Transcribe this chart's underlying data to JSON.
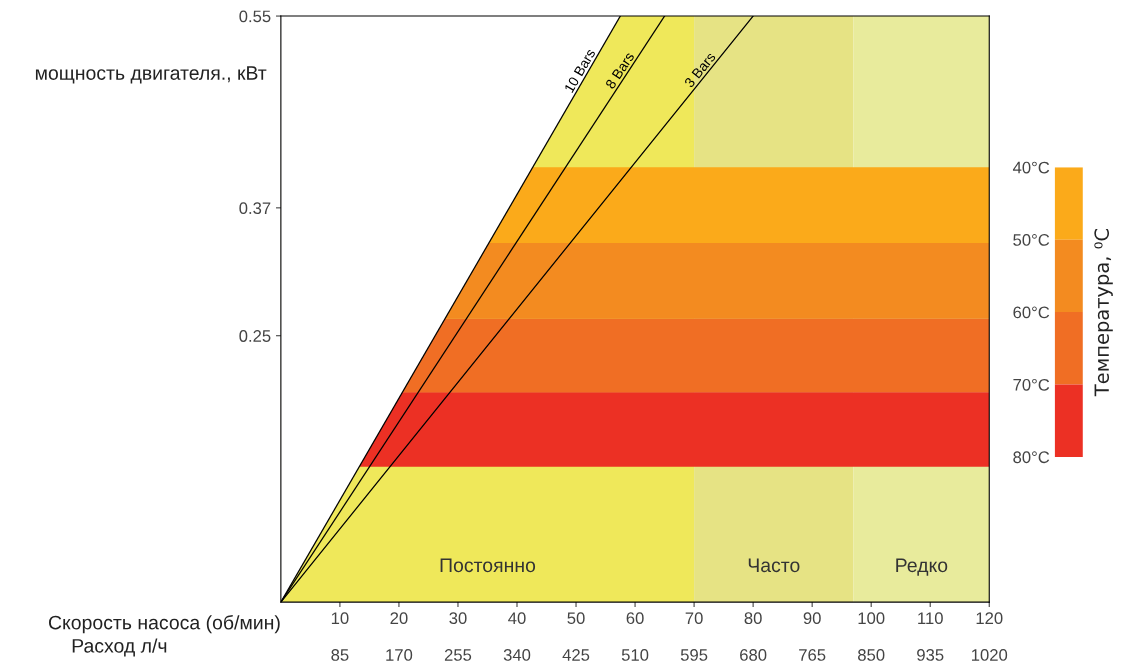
{
  "chart_data": {
    "type": "line",
    "xlabel": "Скорость насоса (об/мин)",
    "x2label": "Расход л/ч",
    "x2lim": [
      0,
      1020
    ],
    "x2ticks": [
      85,
      170,
      255,
      340,
      425,
      510,
      595,
      680,
      765,
      850,
      935,
      1020
    ],
    "ylabel": "мощность двигателя., кВт",
    "series": [
      {
        "name": "10 Bars",
        "color": "#000000",
        "x": [
          0,
          57.5
        ],
        "values": [
          0,
          0.55
        ]
      },
      {
        "name": "8 Bars",
        "color": "#000000",
        "x": [
          0,
          65
        ],
        "values": [
          0,
          0.55
        ]
      },
      {
        "name": "3 Bars",
        "color": "#000000",
        "x": [
          0,
          80
        ],
        "values": [
          0,
          0.55
        ]
      }
    ],
    "xlim": [
      0,
      120
    ],
    "ylim": [
      0,
      0.55
    ],
    "xticks": [
      10,
      20,
      30,
      40,
      50,
      60,
      70,
      80,
      90,
      100,
      110,
      120
    ],
    "yticks": [
      0.25,
      0.37,
      0.55
    ],
    "bands": [
      {
        "axis": "x",
        "from": 0,
        "to": 70,
        "label": "Постоянно",
        "color": "#efe85a"
      },
      {
        "axis": "x",
        "from": 70,
        "to": 97,
        "label": "Часто",
        "color": "#e6e384"
      },
      {
        "axis": "x",
        "from": 97,
        "to": 120,
        "label": "Редко",
        "color": "#e8eb9c"
      },
      {
        "axis": "y",
        "from": 0.337,
        "to": 0.408,
        "color": "#fbaa1a"
      },
      {
        "axis": "y",
        "from": 0.266,
        "to": 0.337,
        "color": "#f38b20"
      },
      {
        "axis": "y",
        "from": 0.197,
        "to": 0.266,
        "color": "#f06e24"
      },
      {
        "axis": "y",
        "from": 0.127,
        "to": 0.197,
        "color": "#ec3024"
      }
    ],
    "clabel": "Температура, ⁰C",
    "clim": [
      40,
      80
    ],
    "cticks": [
      {
        "value": 40,
        "label": "40°C"
      },
      {
        "value": 50,
        "label": "50°C"
      },
      {
        "value": 60,
        "label": "60°C"
      },
      {
        "value": 70,
        "label": "70°C"
      },
      {
        "value": 80,
        "label": "80°C"
      }
    ],
    "grid": false,
    "legend": false
  }
}
